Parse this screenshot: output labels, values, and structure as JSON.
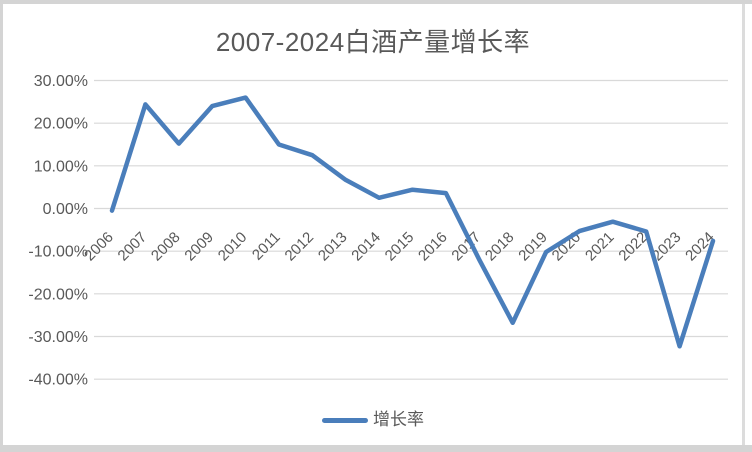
{
  "chart_data": {
    "type": "line",
    "title": "2007-2024白酒产量增长率",
    "categories": [
      "2006",
      "2007",
      "2008",
      "2009",
      "2010",
      "2011",
      "2012",
      "2013",
      "2014",
      "2015",
      "2016",
      "2017",
      "2018",
      "2019",
      "2020",
      "2021",
      "2022",
      "2023",
      "2024"
    ],
    "series": [
      {
        "name": "增长率",
        "values": [
          -0.5,
          24.4,
          15.2,
          24.0,
          26.0,
          15.0,
          12.5,
          6.7,
          2.5,
          4.4,
          3.6,
          -12.0,
          -26.8,
          -10.2,
          -5.3,
          -3.1,
          -5.4,
          -32.3,
          -7.6
        ]
      }
    ],
    "y_axis": {
      "min": -40,
      "max": 30,
      "tick_step": 10,
      "ticks": [
        30,
        20,
        10,
        0,
        -10,
        -20,
        -30,
        -40
      ],
      "tick_labels": [
        "30.00%",
        "20.00%",
        "10.00%",
        "0.00%",
        "-10.00%",
        "-20.00%",
        "-30.00%",
        "-40.00%"
      ]
    },
    "grid": "horizontal",
    "legend_position": "bottom",
    "colors": {
      "line": "#4A7EBB",
      "gridline": "#d9d9d9",
      "axis_text": "#595959",
      "title_text": "#595959",
      "frame": "#d4d4d4",
      "page_edge": "#dcdcdc",
      "background": "#ffffff"
    }
  }
}
